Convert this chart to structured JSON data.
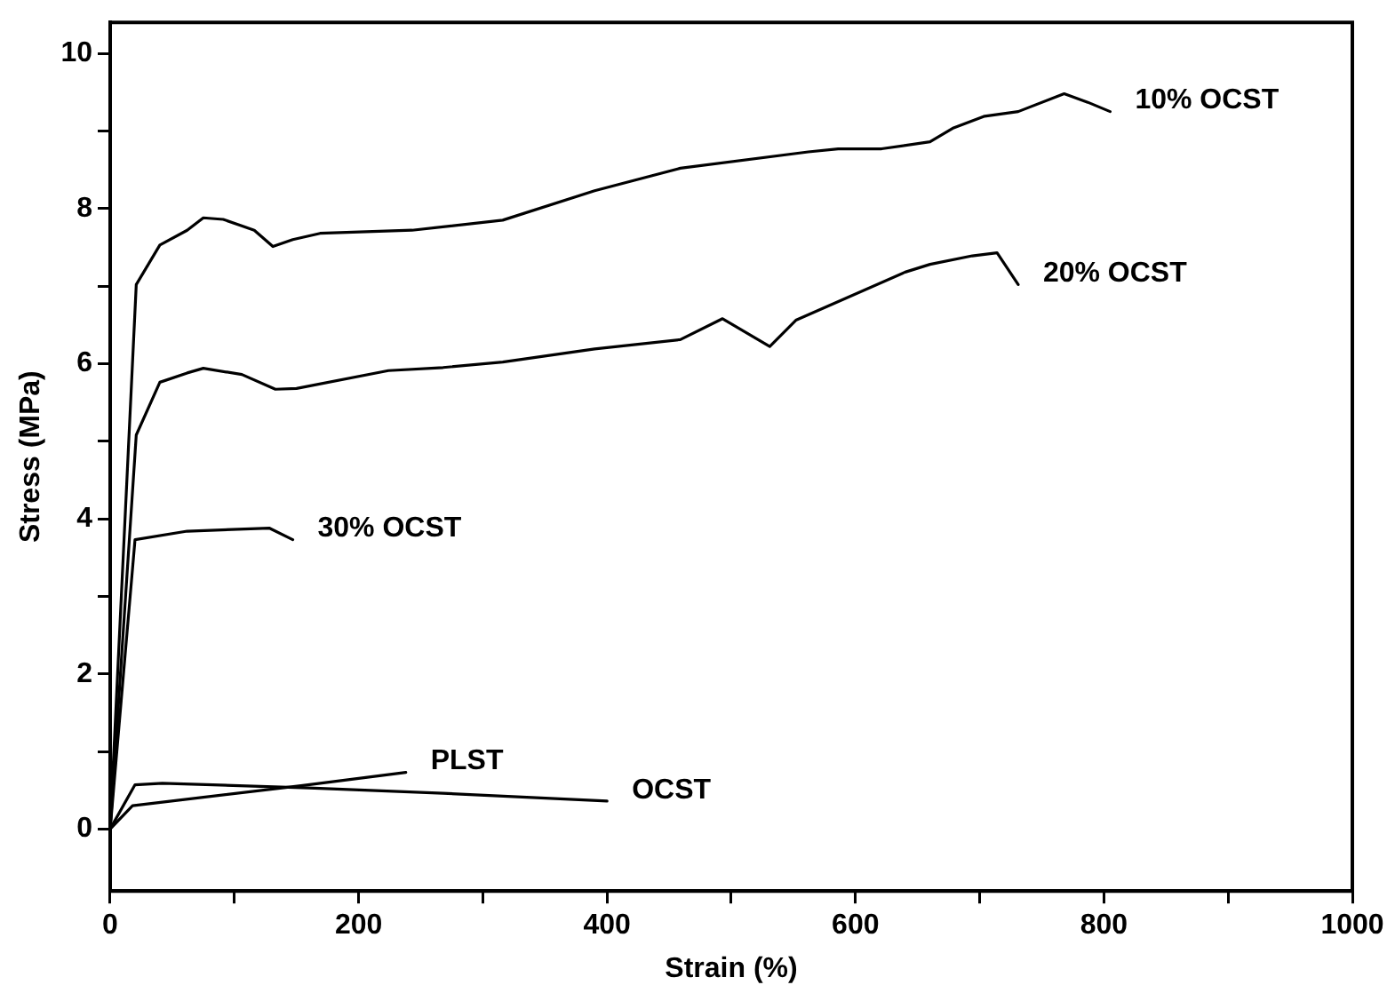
{
  "chart_data": {
    "type": "line",
    "xlabel": "Strain (%)",
    "ylabel": "Stress (MPa)",
    "xlim": [
      0,
      1000
    ],
    "ylim": [
      -0.8,
      10.4
    ],
    "xticks": [
      0,
      {
        "value": 100,
        "label": null
      },
      200,
      {
        "value": 300,
        "label": null
      },
      400,
      {
        "value": 500,
        "label": null
      },
      600,
      {
        "value": 700,
        "label": null
      },
      800,
      {
        "value": 900,
        "label": null
      },
      1000
    ],
    "yticks": [
      0,
      {
        "value": 1,
        "label": null
      },
      2,
      {
        "value": 3,
        "label": null
      },
      4,
      {
        "value": 5,
        "label": null
      },
      6,
      {
        "value": 7,
        "label": null
      },
      8,
      {
        "value": 9,
        "label": null
      },
      10
    ],
    "grid": false,
    "legend": false,
    "marker": "none",
    "line_style": "solid",
    "series": [
      {
        "name": "10% OCST",
        "color": "#000000",
        "x": [
          0,
          21,
          40,
          62,
          75,
          91,
          116,
          131,
          147,
          169,
          243,
          316,
          390,
          459,
          562,
          586,
          621,
          660,
          679,
          704,
          731,
          768,
          787,
          805
        ],
        "values": [
          0,
          7.02,
          7.53,
          7.72,
          7.88,
          7.86,
          7.72,
          7.51,
          7.6,
          7.68,
          7.72,
          7.85,
          8.23,
          8.52,
          8.73,
          8.77,
          8.77,
          8.86,
          9.04,
          9.19,
          9.25,
          9.48,
          9.37,
          9.25
        ]
      },
      {
        "name": "20% OCST",
        "color": "#000000",
        "x": [
          0,
          21,
          40,
          62,
          75,
          106,
          133,
          150,
          224,
          268,
          316,
          390,
          459,
          493,
          531,
          552,
          640,
          660,
          694,
          714,
          731
        ],
        "values": [
          0,
          5.08,
          5.76,
          5.88,
          5.94,
          5.86,
          5.67,
          5.68,
          5.91,
          5.95,
          6.02,
          6.19,
          6.31,
          6.58,
          6.22,
          6.56,
          7.18,
          7.28,
          7.39,
          7.43,
          7.02
        ]
      },
      {
        "name": "30% OCST",
        "color": "#000000",
        "x": [
          0,
          20,
          62,
          128,
          147
        ],
        "values": [
          0,
          3.73,
          3.84,
          3.88,
          3.73
        ]
      },
      {
        "name": "PLST",
        "color": "#000000",
        "x": [
          0,
          18,
          155,
          238
        ],
        "values": [
          0,
          0.3,
          0.56,
          0.73
        ]
      },
      {
        "name": "OCST",
        "color": "#000000",
        "x": [
          0,
          20,
          42,
          160,
          268,
          400
        ],
        "values": [
          0,
          0.57,
          0.59,
          0.53,
          0.46,
          0.36
        ]
      }
    ]
  }
}
